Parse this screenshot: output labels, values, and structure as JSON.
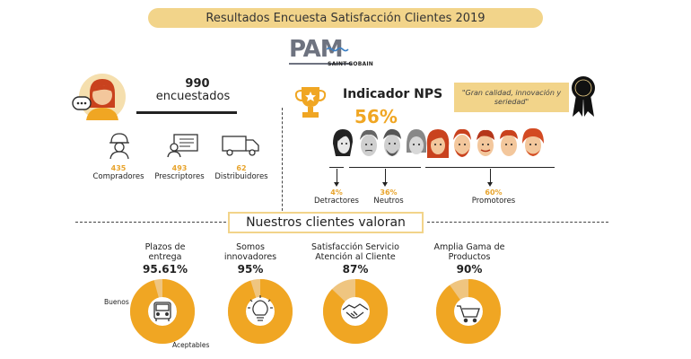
{
  "header": {
    "title": "Resultados Encuesta Satisfacción Clientes 2019"
  },
  "logo": {
    "main": "PAM",
    "sub": "SAINT-GOBAIN"
  },
  "survey": {
    "count": "990",
    "count_label": "encuestados",
    "groups": [
      {
        "value": "435",
        "label": "Compradores",
        "icon": "worker-icon"
      },
      {
        "value": "493",
        "label": "Prescriptores",
        "icon": "id-card-icon"
      },
      {
        "value": "62",
        "label": "Distribuidores",
        "icon": "truck-icon"
      }
    ]
  },
  "nps": {
    "title": "Indicador NPS",
    "value": "56%",
    "quote": "\"Gran calidad, innovación y seriedad\"",
    "segments": [
      {
        "pct": "4%",
        "label": "Detractores"
      },
      {
        "pct": "36%",
        "label": "Neutros"
      },
      {
        "pct": "60%",
        "label": "Promotores"
      }
    ]
  },
  "section": {
    "title": "Nuestros clientes valoran"
  },
  "metrics": [
    {
      "title": "Plazos de entrega",
      "value": "95.61%",
      "fill": 0.9561,
      "icon": "truck-front-icon"
    },
    {
      "title": "Somos innovadores",
      "value": "95%",
      "fill": 0.95,
      "icon": "lightbulb-icon"
    },
    {
      "title": "Satisfacción Servicio Atención al Cliente",
      "value": "87%",
      "fill": 0.87,
      "icon": "handshake-icon"
    },
    {
      "title": "Amplia Gama de Productos",
      "value": "90%",
      "fill": 0.9,
      "icon": "cart-icon"
    }
  ],
  "legend": {
    "good": "Buenos",
    "acceptable": "Aceptables"
  },
  "colors": {
    "accent": "#f0a623",
    "light": "#f2d48a",
    "pale": "#efc580",
    "grey": "#6e7380"
  }
}
